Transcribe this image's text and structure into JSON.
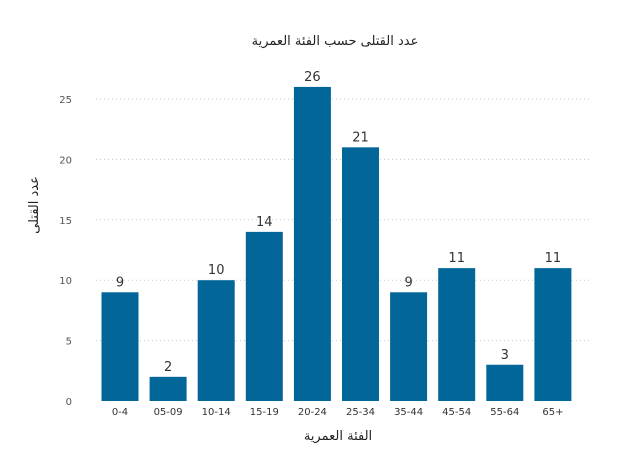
{
  "chart_data": {
    "type": "bar",
    "title": "عدد القتلى حسب الفئة العمرية",
    "xlabel": "الفئة العمرية",
    "ylabel": "عدد القتلى",
    "categories": [
      "0-4",
      "05-09",
      "10-14",
      "15-19",
      "20-24",
      "25-34",
      "35-44",
      "45-54",
      "55-64",
      "65+"
    ],
    "values": [
      9,
      2,
      10,
      14,
      26,
      21,
      9,
      11,
      3,
      11
    ],
    "ylim": [
      0,
      27
    ],
    "yticks": [
      0,
      5,
      10,
      15,
      20,
      25
    ],
    "grid": true,
    "legend": "none",
    "data_labels": true,
    "bar_color": "#036699"
  }
}
